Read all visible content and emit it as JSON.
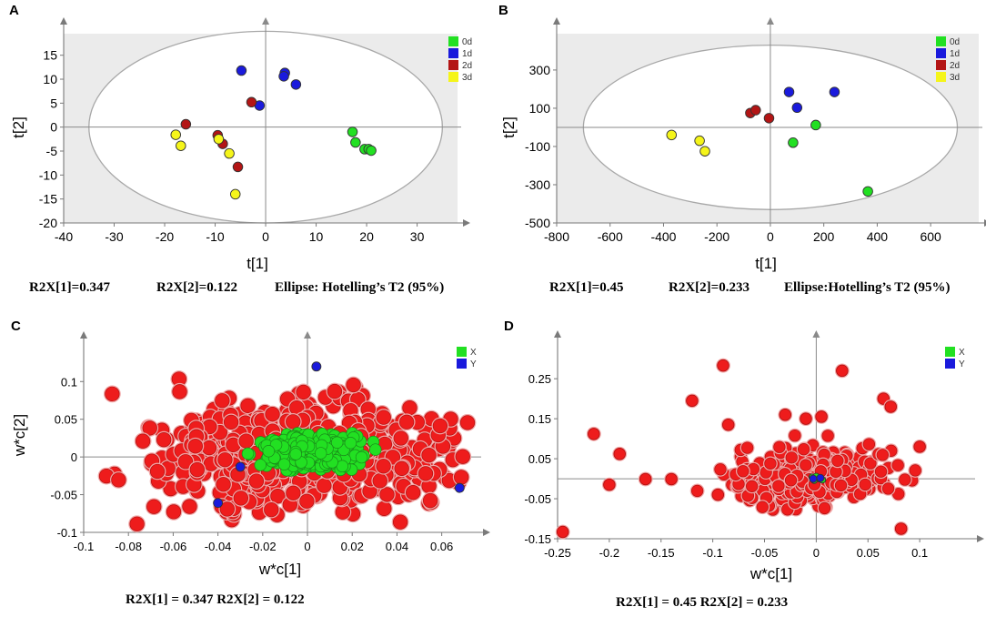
{
  "chart_data": [
    {
      "id": "A",
      "panel_label": "A",
      "type": "scatter",
      "xlabel": "t[1]",
      "ylabel": "t[2]",
      "xlim": [
        -40,
        38
      ],
      "ylim": [
        -20,
        19.5
      ],
      "xticks": [
        "-40",
        "-30",
        "-20",
        "-10",
        "0",
        "10",
        "20",
        "30"
      ],
      "yticks": [
        "-20",
        "-15",
        "-10",
        "-5",
        "0",
        "5",
        "10",
        "15"
      ],
      "ellipse": {
        "rx": 35,
        "ry": 20
      },
      "captions": [
        "R2X[1]=0.347",
        "R2X[2]=0.122",
        "Ellipse: Hotelling’s T2 (95%)"
      ],
      "legend": [
        {
          "label": "0d",
          "color": "#22e022"
        },
        {
          "label": "1d",
          "color": "#1a1adc"
        },
        {
          "label": "2d",
          "color": "#b31515"
        },
        {
          "label": "3d",
          "color": "#f5f51a"
        }
      ],
      "series": [
        {
          "name": "0d",
          "color": "#22e022",
          "points": [
            [
              17.2,
              -1
            ],
            [
              17.8,
              -3.2
            ],
            [
              19.6,
              -4.6
            ],
            [
              20.4,
              -4.6
            ],
            [
              20.9,
              -4.9
            ]
          ]
        },
        {
          "name": "1d",
          "color": "#1a1adc",
          "points": [
            [
              -4.8,
              11.8
            ],
            [
              3.8,
              11.3
            ],
            [
              3.6,
              10.6
            ],
            [
              6,
              8.9
            ],
            [
              -1.2,
              4.5
            ]
          ]
        },
        {
          "name": "2d",
          "color": "#b31515",
          "points": [
            [
              -2.8,
              5.2
            ],
            [
              -15.8,
              0.6
            ],
            [
              -9.5,
              -1.7
            ],
            [
              -8.5,
              -3.5
            ],
            [
              -5.5,
              -8.3
            ]
          ]
        },
        {
          "name": "3d",
          "color": "#f5f51a",
          "points": [
            [
              -17.8,
              -1.6
            ],
            [
              -16.8,
              -3.9
            ],
            [
              -9.3,
              -2.5
            ],
            [
              -7.2,
              -5.5
            ],
            [
              -6,
              -14
            ]
          ]
        }
      ]
    },
    {
      "id": "B",
      "panel_label": "B",
      "type": "scatter",
      "xlabel": "t[1]",
      "ylabel": "t[2]",
      "xlim": [
        -800,
        780
      ],
      "ylim": [
        -500,
        490
      ],
      "xticks": [
        "-800",
        "-600",
        "-400",
        "-200",
        "0",
        "200",
        "400",
        "600"
      ],
      "yticks": [
        "-500",
        "-300",
        "-100",
        "100",
        "300"
      ],
      "ellipse": {
        "rx": 700,
        "ry": 430
      },
      "captions": [
        "R2X[1]=0.45",
        "R2X[2]=0.233",
        "Ellipse:Hotelling’s T2 (95%)"
      ],
      "legend": [
        {
          "label": "0d",
          "color": "#22e022"
        },
        {
          "label": "1d",
          "color": "#1a1adc"
        },
        {
          "label": "2d",
          "color": "#b31515"
        },
        {
          "label": "3d",
          "color": "#f5f51a"
        }
      ],
      "series": [
        {
          "name": "0d",
          "color": "#22e022",
          "points": [
            [
              170,
              12
            ],
            [
              85,
              -80
            ],
            [
              365,
              -335
            ]
          ]
        },
        {
          "name": "1d",
          "color": "#1a1adc",
          "points": [
            [
              70,
              185
            ],
            [
              100,
              103
            ],
            [
              240,
              185
            ]
          ]
        },
        {
          "name": "2d",
          "color": "#b31515",
          "points": [
            [
              -75,
              75
            ],
            [
              -55,
              90
            ],
            [
              -5,
              48
            ]
          ]
        },
        {
          "name": "3d",
          "color": "#f5f51a",
          "points": [
            [
              -370,
              -40
            ],
            [
              -265,
              -70
            ],
            [
              -245,
              -125
            ]
          ]
        }
      ]
    },
    {
      "id": "C",
      "panel_label": "C",
      "type": "scatter",
      "xlabel": "w*c[1]",
      "ylabel": "w*c[2]",
      "xlim": [
        -0.1,
        0.076
      ],
      "ylim": [
        -0.1,
        0.145
      ],
      "xticks": [
        "-0.1",
        "-0.08",
        "-0.06",
        "-0.04",
        "-0.02",
        "0",
        "0.02",
        "0.04",
        "0.06"
      ],
      "yticks": [
        "-0.1",
        "-0.05",
        "0",
        "0.05",
        "0.1"
      ],
      "captions": [
        "R2X[1] = 0.347 R2X[2] = 0.122"
      ],
      "legend": [
        {
          "label": "X",
          "color": "#22e022"
        },
        {
          "label": "Y",
          "color": "#1a1adc"
        }
      ],
      "clouds": [
        {
          "name": "X-red",
          "color": "#ee1c1c",
          "count": 600,
          "center": [
            -0.002,
            0.003
          ],
          "spread": [
            0.03,
            0.036
          ],
          "xrange": [
            -0.09,
            0.072
          ],
          "yrange": [
            -0.093,
            0.105
          ]
        },
        {
          "name": "X-green",
          "color": "#22e022",
          "count": 320,
          "center": [
            0.003,
            0.007
          ],
          "spread": [
            0.0125,
            0.012
          ],
          "xrange": [
            -0.028,
            0.031
          ],
          "yrange": [
            -0.02,
            0.04
          ]
        }
      ],
      "series": [
        {
          "name": "Y",
          "color": "#1a1adc",
          "points": [
            [
              0.004,
              0.12
            ],
            [
              -0.03,
              -0.013
            ],
            [
              -0.04,
              -0.061
            ],
            [
              0.068,
              -0.041
            ]
          ]
        }
      ]
    },
    {
      "id": "D",
      "panel_label": "D",
      "type": "scatter",
      "xlabel": "w*c[1]",
      "ylabel": "",
      "xlim": [
        -0.25,
        0.15
      ],
      "ylim": [
        -0.15,
        0.33
      ],
      "xticks": [
        "-0.25",
        "-0.2",
        "-0.15",
        "-0.1",
        "-0.05",
        "0",
        "0.05",
        "0.1"
      ],
      "yticks": [
        "-0.15",
        "-0.05",
        "0.05",
        "0.15",
        "0.25"
      ],
      "captions": [
        "R2X[1] = 0.45  R2X[2] = 0.233"
      ],
      "legend": [
        {
          "label": "X",
          "color": "#22e022"
        },
        {
          "label": "Y",
          "color": "#1a1adc"
        }
      ],
      "clouds": [
        {
          "name": "X-red",
          "color": "#ee1c1c",
          "count": 340,
          "center": [
            -0.005,
            0.005
          ],
          "spread": [
            0.035,
            0.035
          ],
          "xrange": [
            -0.12,
            0.12
          ],
          "yrange": [
            -0.13,
            0.16
          ]
        }
      ],
      "series": [
        {
          "name": "X-outliers",
          "color": "#ee1c1c",
          "points": [
            [
              -0.245,
              -0.133
            ],
            [
              -0.215,
              0.112
            ],
            [
              -0.19,
              0.062
            ],
            [
              -0.2,
              -0.015
            ],
            [
              -0.165,
              -0.001
            ],
            [
              -0.14,
              -0.001
            ],
            [
              -0.12,
              0.195
            ],
            [
              -0.095,
              -0.04
            ],
            [
              -0.09,
              0.283
            ],
            [
              -0.085,
              0.135
            ],
            [
              -0.03,
              0.16
            ],
            [
              0.025,
              0.27
            ],
            [
              0.065,
              0.2
            ],
            [
              0.072,
              0.18
            ],
            [
              0.082,
              -0.125
            ],
            [
              0.1,
              0.08
            ],
            [
              -0.01,
              0.15
            ],
            [
              0.005,
              0.155
            ]
          ]
        },
        {
          "name": "X-green",
          "color": "#22e022",
          "points": [
            [
              0.003,
              0.0
            ],
            [
              -0.004,
              0.004
            ],
            [
              0.006,
              -0.003
            ],
            [
              0.0,
              0.006
            ],
            [
              -0.002,
              -0.004
            ]
          ]
        },
        {
          "name": "Y",
          "color": "#1a1adc",
          "points": [
            [
              -0.003,
              0.0
            ],
            [
              0.004,
              0.002
            ]
          ]
        }
      ]
    }
  ]
}
